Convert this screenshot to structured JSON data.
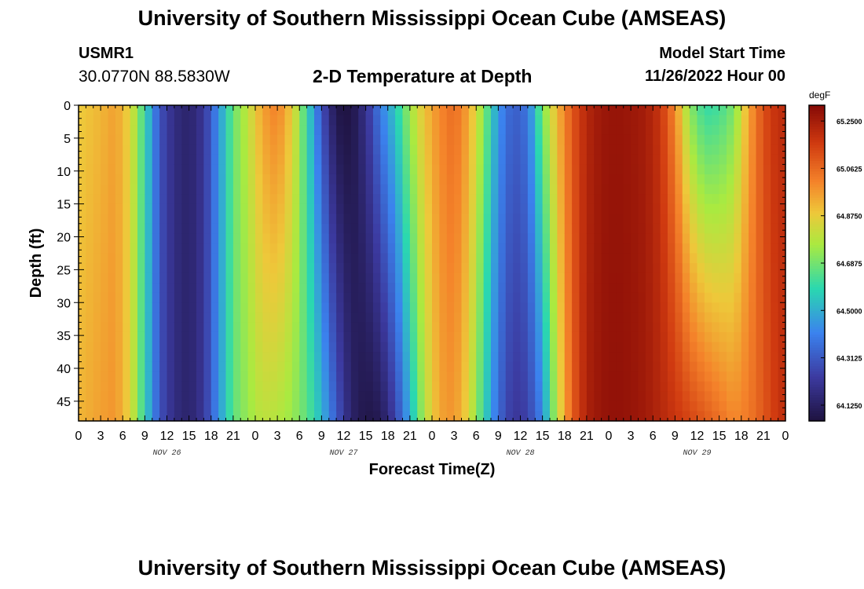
{
  "page": {
    "title": "University of Southern Mississippi Ocean Cube (AMSEAS)",
    "footer_title": "University of Southern Mississippi Ocean Cube (AMSEAS)",
    "station": "USMR1",
    "coordinates": "30.0770N  88.5830W",
    "plot_title": "2-D Temperature at Depth",
    "model_start_label": "Model Start Time",
    "model_start_value": "11/26/2022 Hour 00"
  },
  "chart_data": {
    "type": "heatmap",
    "title": "2-D Temperature at Depth",
    "xlabel": "Forecast Time(Z)",
    "ylabel": "Depth (ft)",
    "x_unit": "hours since 11/26/2022 00Z",
    "xlim": [
      0,
      96
    ],
    "ylim": [
      0,
      48
    ],
    "y_inverted": true,
    "x_ticks": [
      0,
      3,
      6,
      9,
      12,
      15,
      18,
      21,
      24,
      27,
      30,
      33,
      36,
      39,
      42,
      45,
      48,
      51,
      54,
      57,
      60,
      63,
      66,
      69,
      72,
      75,
      78,
      81,
      84,
      87,
      90,
      93,
      96
    ],
    "x_tick_labels": [
      "0",
      "3",
      "6",
      "9",
      "12",
      "15",
      "18",
      "21",
      "0",
      "3",
      "6",
      "9",
      "12",
      "15",
      "18",
      "21",
      "0",
      "3",
      "6",
      "9",
      "12",
      "15",
      "18",
      "21",
      "0",
      "3",
      "6",
      "9",
      "12",
      "15",
      "18",
      "21",
      "0"
    ],
    "y_ticks": [
      0,
      5,
      10,
      15,
      20,
      25,
      30,
      35,
      40,
      45
    ],
    "y_tick_labels": [
      "0",
      "5",
      "10",
      "15",
      "20",
      "25",
      "30",
      "35",
      "40",
      "45"
    ],
    "date_labels": [
      {
        "hour": 12,
        "label": "NOV 26"
      },
      {
        "hour": 36,
        "label": "NOV 27"
      },
      {
        "hour": 60,
        "label": "NOV 28"
      },
      {
        "hour": 84,
        "label": "NOV 29"
      }
    ],
    "colorbar": {
      "unit": "degF",
      "range": [
        64.0625,
        65.3125
      ],
      "ticks": [
        64.125,
        64.3125,
        64.5,
        64.6875,
        64.875,
        65.0625,
        65.25
      ],
      "tick_labels": [
        "64.1250",
        "64.3125",
        "64.5000",
        "64.6875",
        "64.8750",
        "65.0625",
        "65.2500"
      ]
    },
    "temperature_profile_by_hour": {
      "hours": [
        0,
        3,
        5,
        7,
        9,
        11,
        13,
        15,
        17,
        19,
        21,
        23,
        25,
        27,
        29,
        31,
        33,
        35,
        37,
        39,
        41,
        43,
        45,
        47,
        49,
        51,
        53,
        55,
        57,
        59,
        61,
        63,
        65,
        67,
        69,
        71,
        73,
        75,
        77,
        79,
        81,
        83,
        85,
        87,
        89,
        91,
        93,
        95,
        96
      ],
      "surface": [
        64.88,
        64.92,
        64.96,
        64.86,
        64.6,
        64.3,
        64.18,
        64.14,
        64.22,
        64.44,
        64.68,
        64.8,
        64.96,
        65.02,
        64.88,
        64.6,
        64.3,
        64.08,
        64.07,
        64.2,
        64.4,
        64.55,
        64.75,
        64.9,
        65.0,
        65.06,
        64.95,
        64.72,
        64.45,
        64.32,
        64.38,
        64.7,
        64.92,
        65.1,
        65.22,
        65.27,
        65.28,
        65.27,
        65.25,
        65.18,
        65.0,
        64.72,
        64.6,
        64.62,
        64.7,
        64.95,
        65.12,
        65.2,
        65.2
      ],
      "bottom": [
        64.92,
        64.96,
        64.98,
        64.86,
        64.58,
        64.3,
        64.18,
        64.14,
        64.22,
        64.44,
        64.66,
        64.74,
        64.8,
        64.78,
        64.74,
        64.66,
        64.52,
        64.32,
        64.14,
        64.08,
        64.1,
        64.25,
        64.5,
        64.78,
        64.95,
        64.98,
        64.85,
        64.6,
        64.35,
        64.22,
        64.25,
        64.42,
        64.8,
        65.08,
        65.24,
        65.28,
        65.29,
        65.28,
        65.26,
        65.22,
        65.18,
        65.14,
        65.1,
        65.05,
        65.0,
        65.03,
        65.1,
        65.18,
        65.2
      ]
    }
  }
}
